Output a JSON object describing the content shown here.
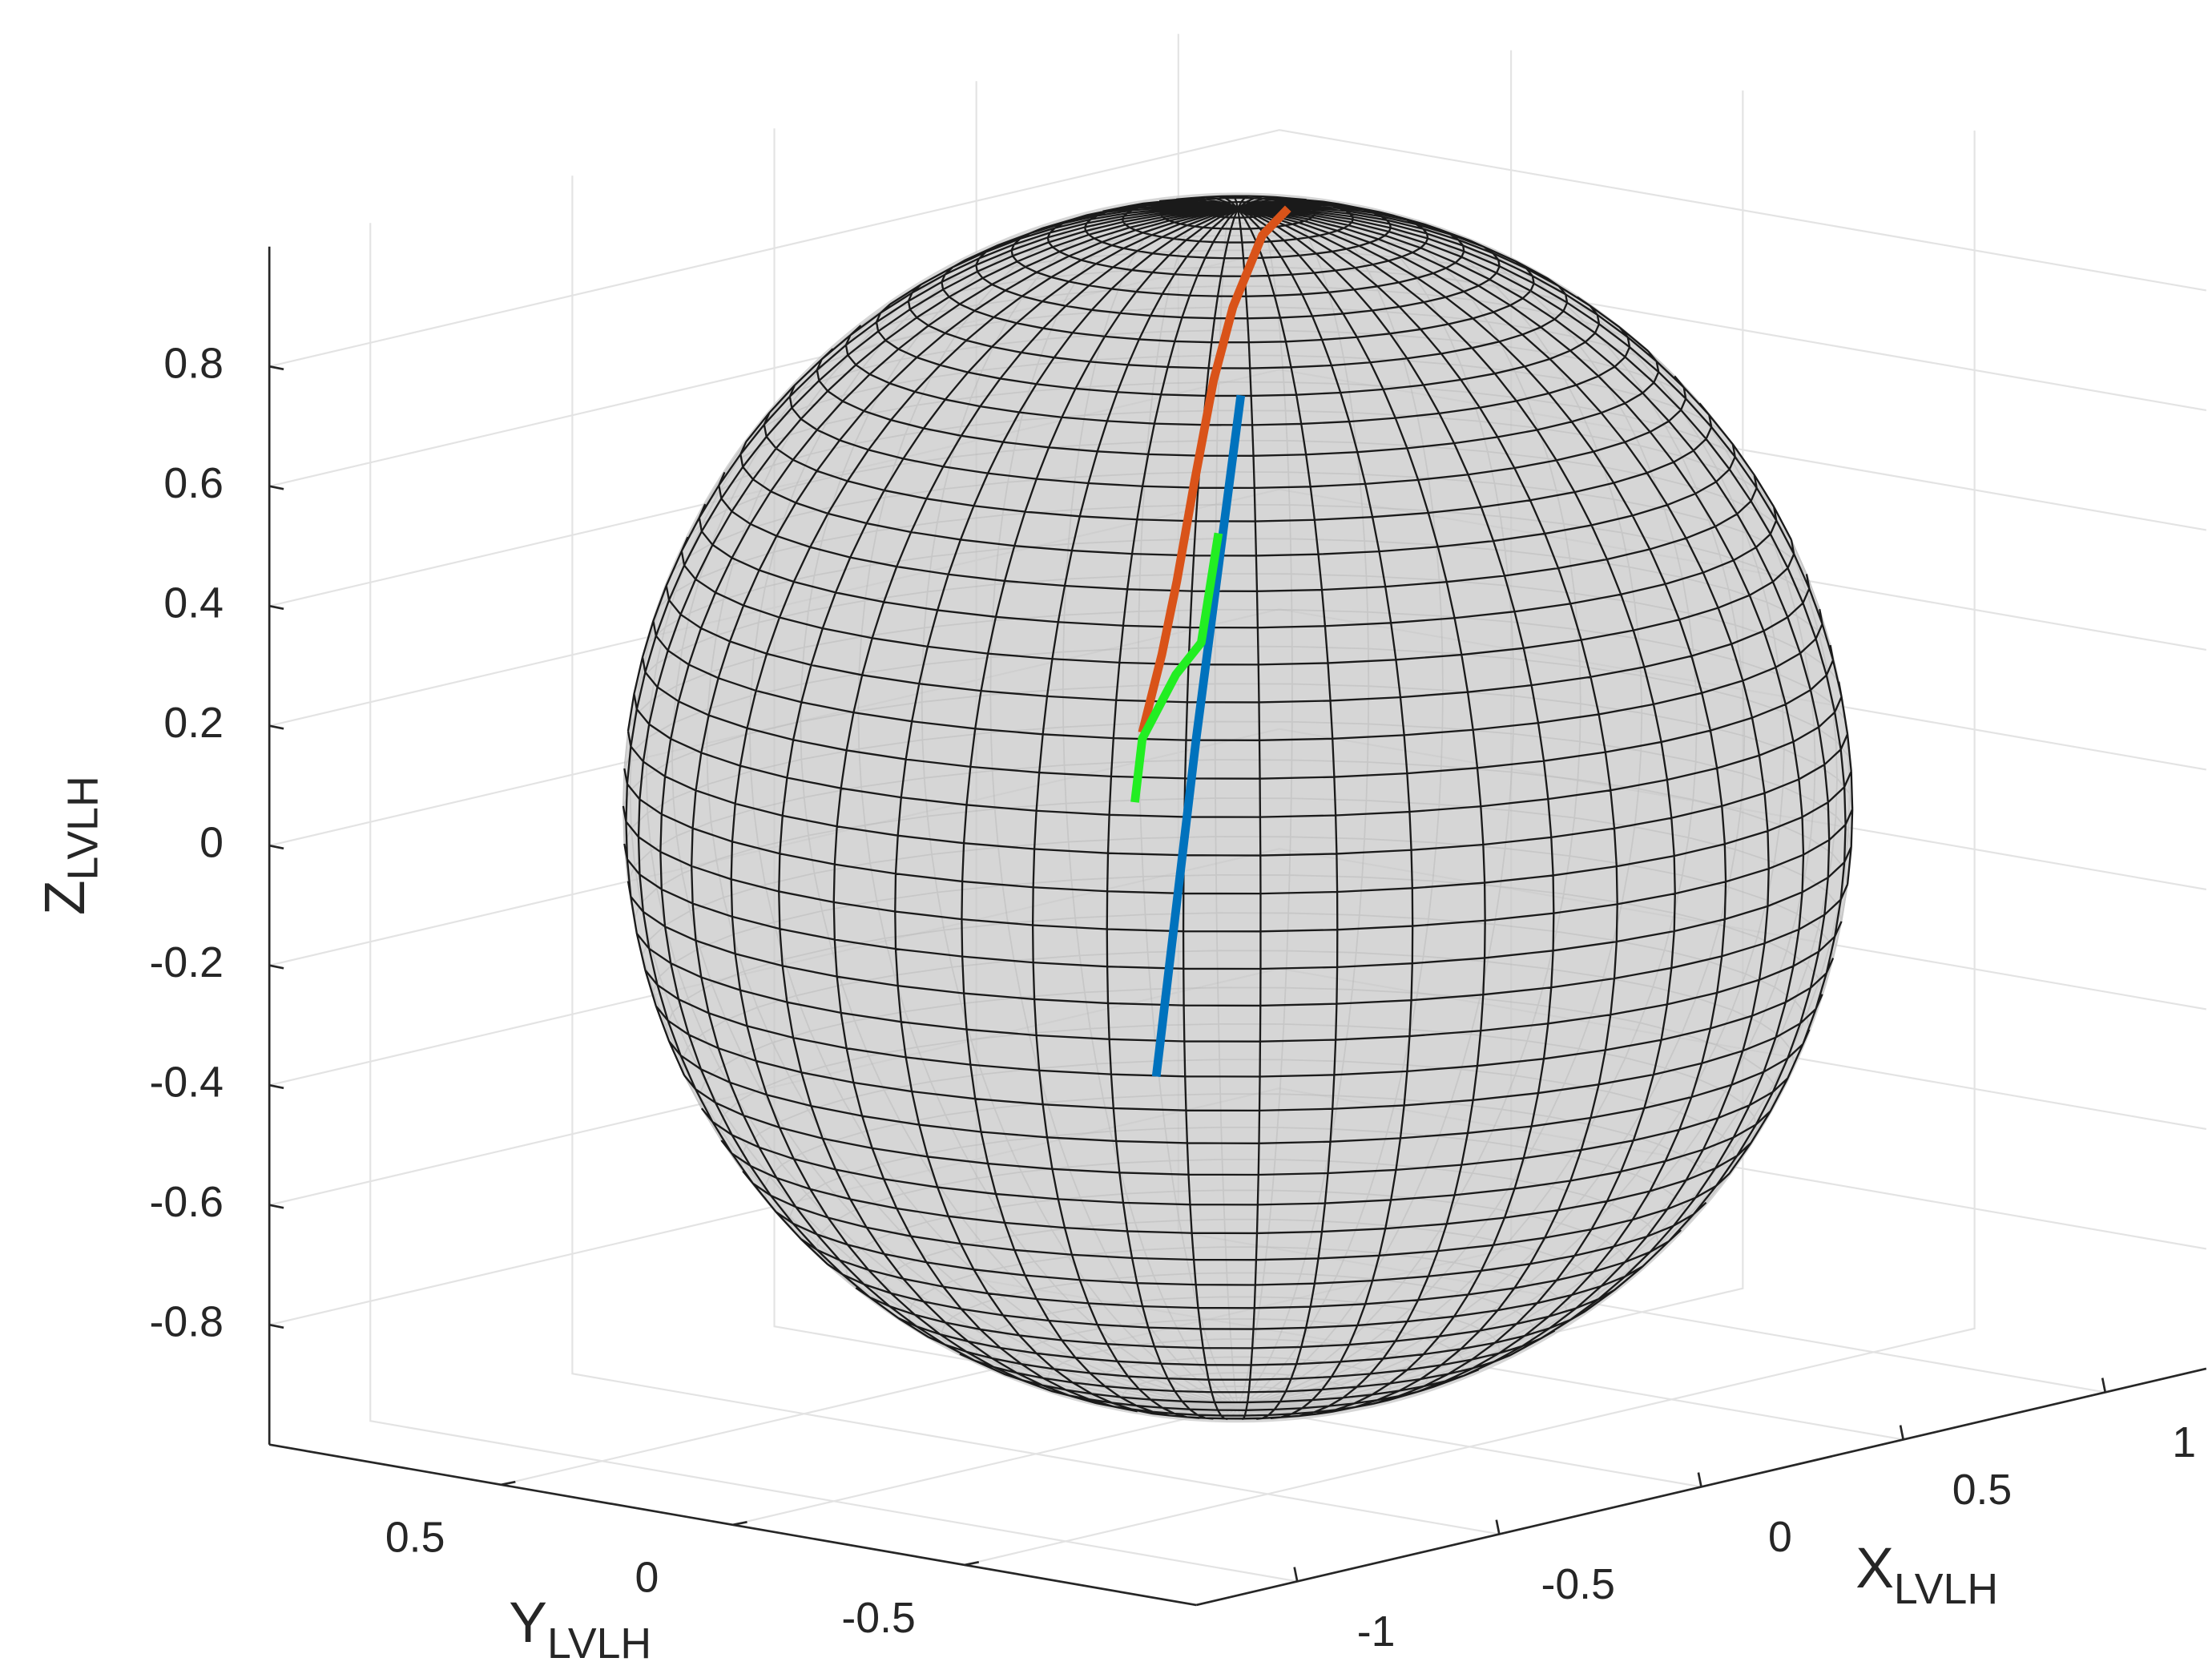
{
  "chart_data": {
    "type": "line3d",
    "xlabel": {
      "main": "X",
      "sub": "LVLH"
    },
    "ylabel": {
      "main": "Y",
      "sub": "LVLH"
    },
    "zlabel": {
      "main": "Z",
      "sub": "LVLH"
    },
    "xlim": [
      -1.25,
      1.25
    ],
    "ylim": [
      -1,
      1
    ],
    "zlim": [
      -1,
      1
    ],
    "xticks": [
      -1,
      -0.5,
      0,
      0.5,
      1
    ],
    "yticks": [
      -0.5,
      0,
      0.5
    ],
    "zticks": [
      -0.8,
      -0.6,
      -0.4,
      -0.2,
      0,
      0.2,
      0.4,
      0.6,
      0.8
    ],
    "grid": true,
    "series": [
      {
        "color": "#D95319",
        "x": [
          0.09,
          -0.1,
          -0.31,
          -0.45,
          -0.59,
          -0.69,
          -0.75,
          -0.81
        ],
        "y": [
          -0.03,
          -0.14,
          -0.26,
          -0.34,
          -0.42,
          -0.47,
          -0.49,
          -0.5
        ],
        "z": [
          0.99,
          0.99,
          0.92,
          0.83,
          0.69,
          0.55,
          0.44,
          0.32
        ]
      },
      {
        "color": "#0072BD",
        "x": [
          -0.44,
          -0.63,
          -0.81
        ],
        "y": [
          -0.39,
          -0.46,
          -0.53
        ],
        "z": [
          0.81,
          0.28,
          -0.25
        ]
      },
      {
        "color": "#22EE22",
        "x": [
          -0.61,
          -0.71,
          -0.75,
          -0.81,
          -0.84
        ],
        "y": [
          -0.49,
          -0.54,
          -0.52,
          -0.5,
          -0.51
        ],
        "z": [
          0.62,
          0.46,
          0.41,
          0.31,
          0.21
        ]
      }
    ]
  }
}
